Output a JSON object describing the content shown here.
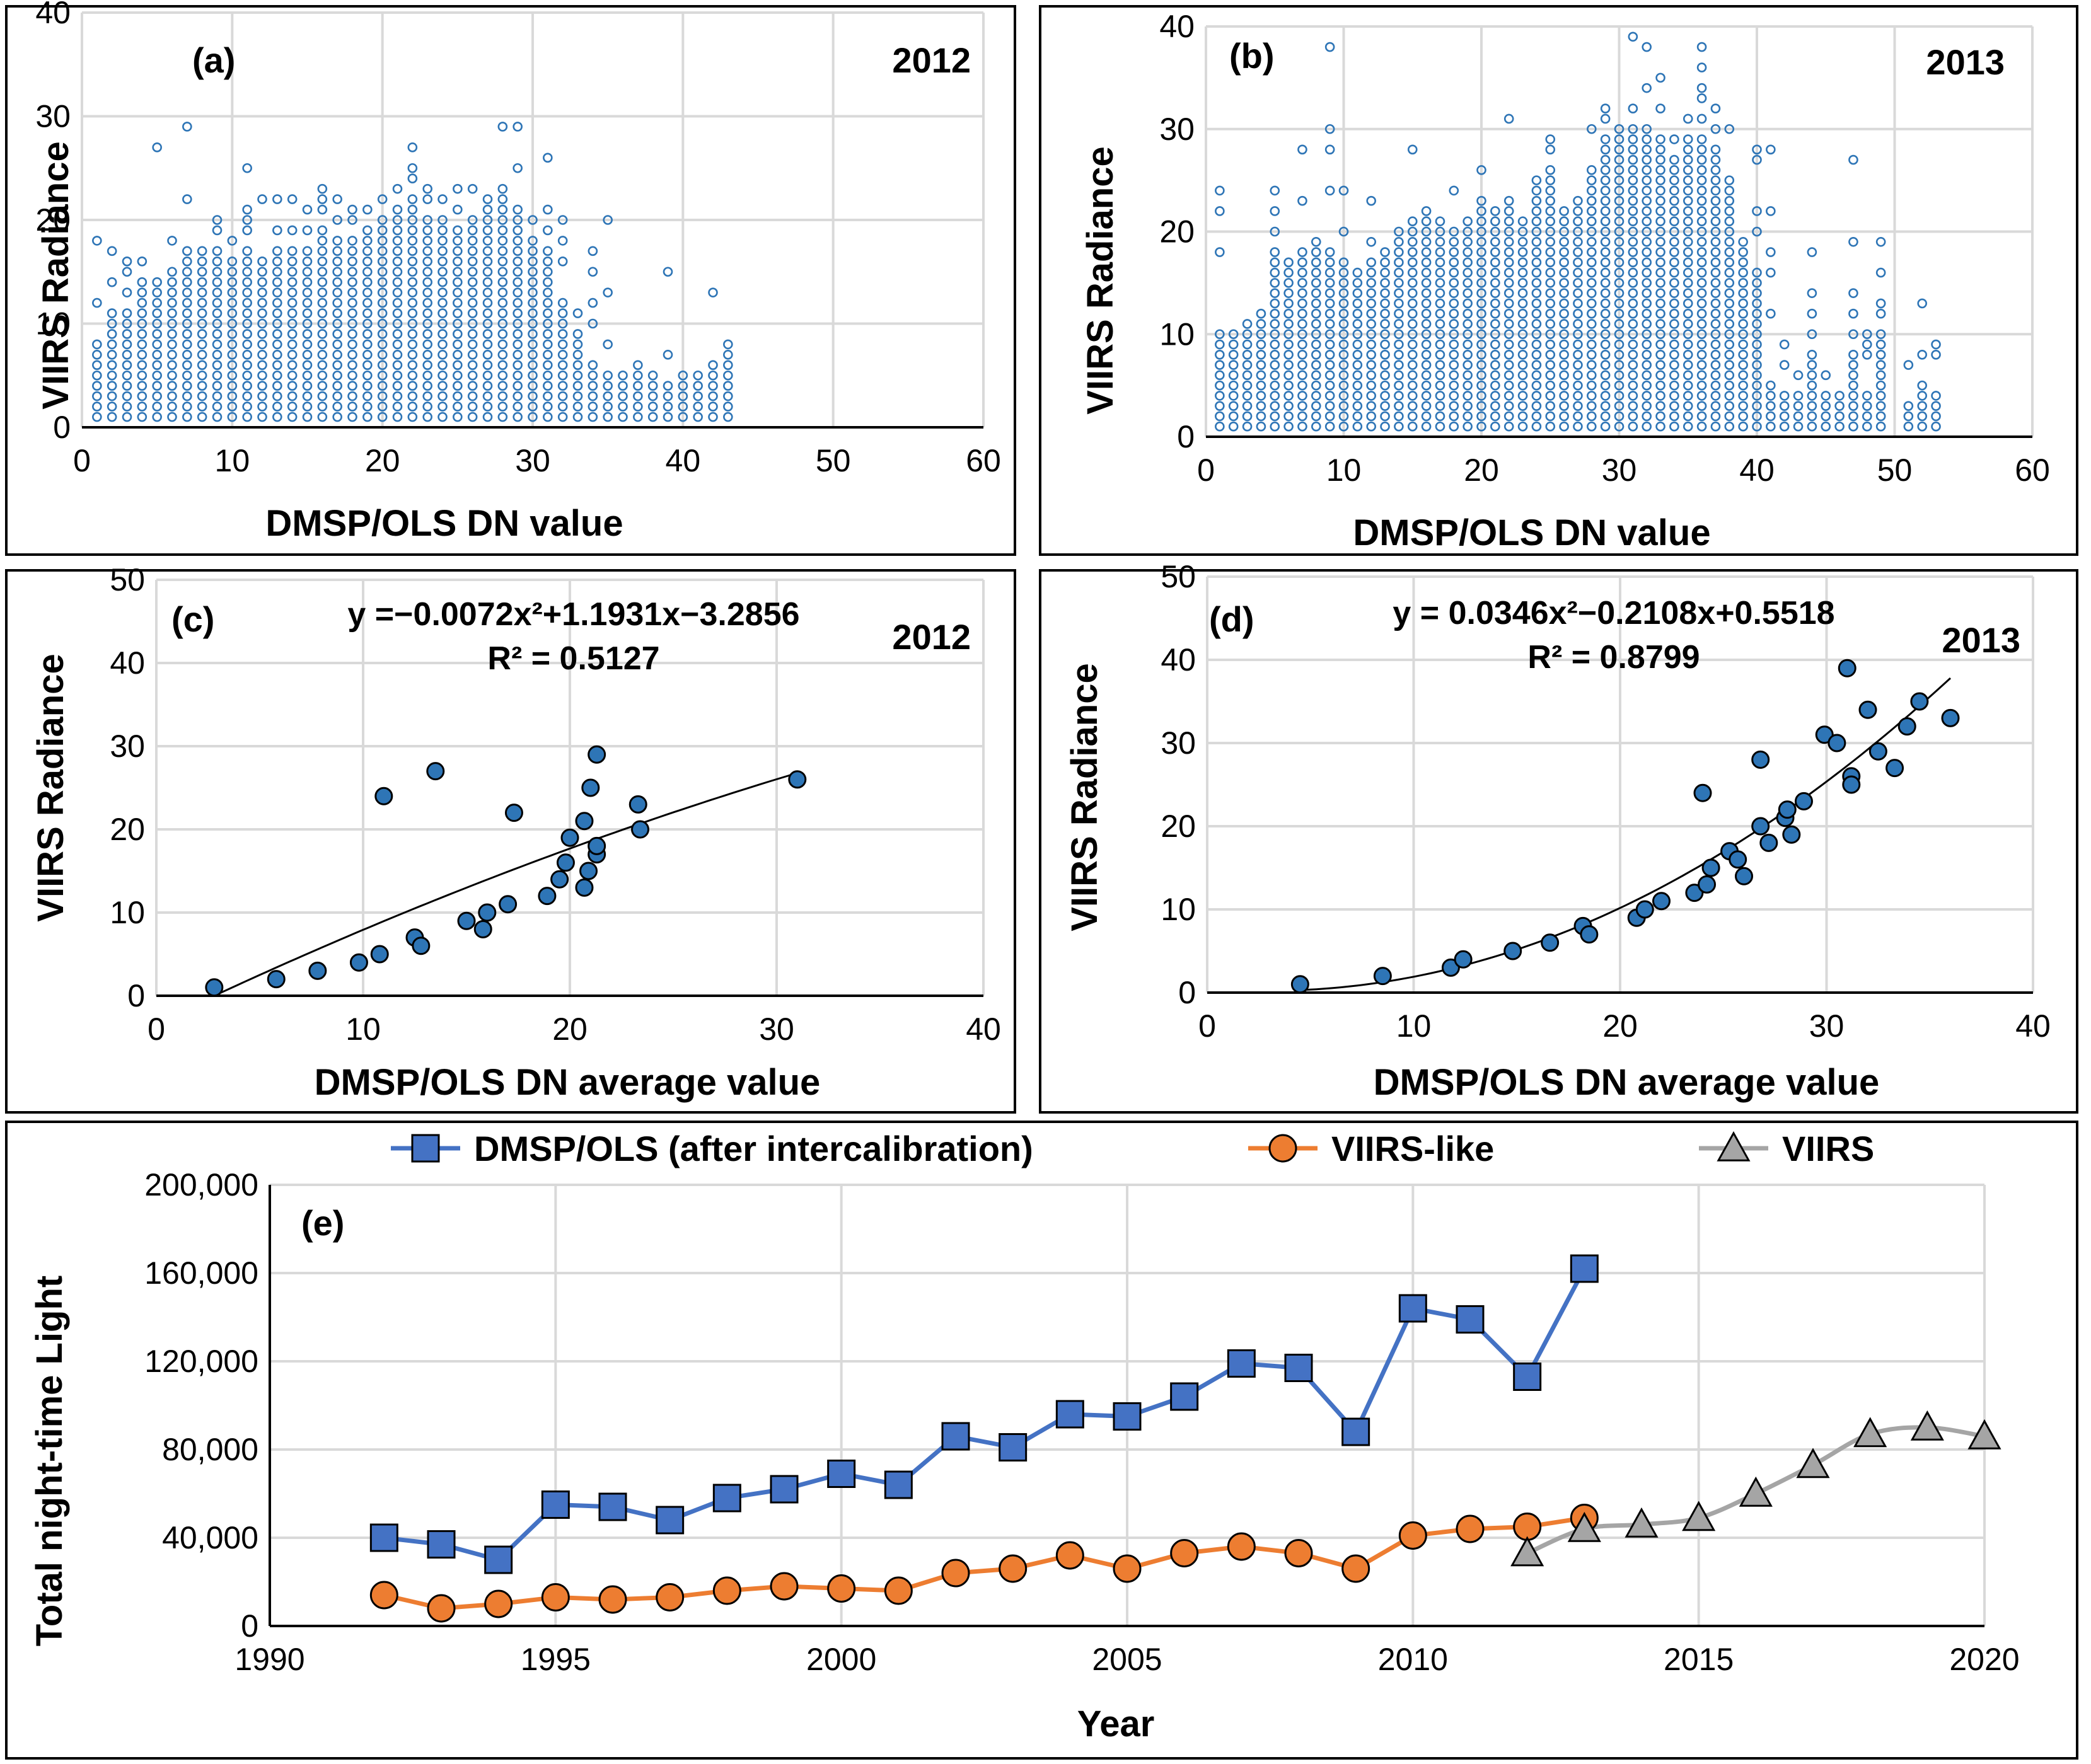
{
  "colors": {
    "scatter_open": "#2e75b6",
    "scatter_fill": "#2e75b6",
    "dmsp": "#4472c4",
    "viirs_like": "#ed7d31",
    "viirs": "#a5a5a5",
    "grid": "#d9d9d9"
  },
  "chart_data": [
    {
      "panel": "a",
      "type": "scatter",
      "tag": "(a)",
      "year_label": "2012",
      "xlabel": "DMSP/OLS DN value",
      "ylabel": "VIIRS Radiance",
      "xlim": [
        0,
        60
      ],
      "ylim": [
        0,
        40
      ],
      "xticks": [
        "0",
        "10",
        "20",
        "30",
        "40",
        "50",
        "60"
      ],
      "yticks": [
        "0",
        "10",
        "20",
        "30",
        "40"
      ],
      "columns": [
        {
          "x": 1,
          "ymax": 8,
          "extra": [
            12,
            18
          ]
        },
        {
          "x": 2,
          "ymax": 11,
          "extra": [
            14,
            17
          ]
        },
        {
          "x": 3,
          "ymax": 11,
          "extra": [
            13,
            15,
            16
          ]
        },
        {
          "x": 4,
          "ymax": 14,
          "extra": [
            16
          ]
        },
        {
          "x": 5,
          "ymax": 14,
          "extra": [
            27
          ]
        },
        {
          "x": 6,
          "ymax": 15,
          "extra": [
            18
          ]
        },
        {
          "x": 7,
          "ymax": 16,
          "extra": [
            17,
            22,
            29
          ]
        },
        {
          "x": 8,
          "ymax": 16,
          "extra": [
            17
          ]
        },
        {
          "x": 9,
          "ymax": 17,
          "extra": [
            19,
            20
          ]
        },
        {
          "x": 10,
          "ymax": 16,
          "extra": [
            18
          ]
        },
        {
          "x": 11,
          "ymax": 17,
          "extra": [
            19,
            20,
            21,
            25
          ]
        },
        {
          "x": 12,
          "ymax": 16,
          "extra": [
            22
          ]
        },
        {
          "x": 13,
          "ymax": 17,
          "extra": [
            19,
            22
          ]
        },
        {
          "x": 14,
          "ymax": 17,
          "extra": [
            19,
            22
          ]
        },
        {
          "x": 15,
          "ymax": 17,
          "extra": [
            19,
            21
          ]
        },
        {
          "x": 16,
          "ymax": 19,
          "extra": [
            21,
            22,
            23
          ]
        },
        {
          "x": 17,
          "ymax": 18,
          "extra": [
            20,
            22
          ]
        },
        {
          "x": 18,
          "ymax": 18,
          "extra": [
            20,
            21
          ]
        },
        {
          "x": 19,
          "ymax": 19,
          "extra": [
            21
          ]
        },
        {
          "x": 20,
          "ymax": 20,
          "extra": [
            22
          ]
        },
        {
          "x": 21,
          "ymax": 21,
          "extra": [
            23
          ]
        },
        {
          "x": 22,
          "ymax": 22,
          "extra": [
            24,
            25,
            27
          ]
        },
        {
          "x": 23,
          "ymax": 20,
          "extra": [
            22,
            23
          ]
        },
        {
          "x": 24,
          "ymax": 20,
          "extra": [
            22
          ]
        },
        {
          "x": 25,
          "ymax": 19,
          "extra": [
            21,
            23
          ]
        },
        {
          "x": 26,
          "ymax": 20,
          "extra": [
            23
          ]
        },
        {
          "x": 27,
          "ymax": 21,
          "extra": [
            22
          ]
        },
        {
          "x": 28,
          "ymax": 22,
          "extra": [
            23,
            29
          ]
        },
        {
          "x": 29,
          "ymax": 20,
          "extra": [
            21,
            25,
            29
          ]
        },
        {
          "x": 30,
          "ymax": 18,
          "extra": [
            20
          ]
        },
        {
          "x": 31,
          "ymax": 17,
          "extra": [
            19,
            21,
            26
          ]
        },
        {
          "x": 32,
          "ymax": 12,
          "extra": [
            16,
            18,
            20
          ]
        },
        {
          "x": 33,
          "ymax": 9,
          "extra": [
            11
          ]
        },
        {
          "x": 34,
          "ymax": 6,
          "extra": [
            10,
            12,
            15,
            17
          ]
        },
        {
          "x": 35,
          "ymax": 5,
          "extra": [
            8,
            13,
            20
          ]
        },
        {
          "x": 36,
          "ymax": 5,
          "extra": []
        },
        {
          "x": 37,
          "ymax": 6,
          "extra": []
        },
        {
          "x": 38,
          "ymax": 5,
          "extra": []
        },
        {
          "x": 39,
          "ymax": 4,
          "extra": [
            7,
            15
          ]
        },
        {
          "x": 40,
          "ymax": 4,
          "extra": [
            5
          ]
        },
        {
          "x": 41,
          "ymax": 5,
          "extra": []
        },
        {
          "x": 42,
          "ymax": 6,
          "extra": [
            13
          ]
        },
        {
          "x": 43,
          "ymax": 8,
          "extra": []
        }
      ]
    },
    {
      "panel": "b",
      "type": "scatter",
      "tag": "(b)",
      "year_label": "2013",
      "xlabel": "DMSP/OLS DN value",
      "ylabel": "VIIRS Radiance",
      "xlim": [
        0,
        60
      ],
      "ylim": [
        0,
        40
      ],
      "xticks": [
        "0",
        "10",
        "20",
        "30",
        "40",
        "50",
        "60"
      ],
      "yticks": [
        "0",
        "10",
        "20",
        "30",
        "40"
      ],
      "columns": [
        {
          "x": 1,
          "ymax": 10,
          "extra": [
            18,
            22,
            24
          ]
        },
        {
          "x": 2,
          "ymax": 10,
          "extra": []
        },
        {
          "x": 3,
          "ymax": 11,
          "extra": []
        },
        {
          "x": 4,
          "ymax": 12,
          "extra": []
        },
        {
          "x": 5,
          "ymax": 18,
          "extra": [
            20,
            22,
            24
          ]
        },
        {
          "x": 6,
          "ymax": 17,
          "extra": []
        },
        {
          "x": 7,
          "ymax": 18,
          "extra": [
            23,
            28
          ]
        },
        {
          "x": 8,
          "ymax": 19,
          "extra": []
        },
        {
          "x": 9,
          "ymax": 18,
          "extra": [
            24,
            28,
            30,
            38
          ]
        },
        {
          "x": 10,
          "ymax": 17,
          "extra": [
            20,
            24
          ]
        },
        {
          "x": 11,
          "ymax": 16,
          "extra": []
        },
        {
          "x": 12,
          "ymax": 17,
          "extra": [
            19,
            23
          ]
        },
        {
          "x": 13,
          "ymax": 18,
          "extra": []
        },
        {
          "x": 14,
          "ymax": 20,
          "extra": []
        },
        {
          "x": 15,
          "ymax": 21,
          "extra": [
            28
          ]
        },
        {
          "x": 16,
          "ymax": 22,
          "extra": []
        },
        {
          "x": 17,
          "ymax": 21,
          "extra": []
        },
        {
          "x": 18,
          "ymax": 20,
          "extra": [
            24
          ]
        },
        {
          "x": 19,
          "ymax": 21,
          "extra": []
        },
        {
          "x": 20,
          "ymax": 23,
          "extra": [
            26
          ]
        },
        {
          "x": 21,
          "ymax": 22,
          "extra": []
        },
        {
          "x": 22,
          "ymax": 23,
          "extra": [
            31
          ]
        },
        {
          "x": 23,
          "ymax": 21,
          "extra": []
        },
        {
          "x": 24,
          "ymax": 25,
          "extra": []
        },
        {
          "x": 25,
          "ymax": 26,
          "extra": [
            28,
            29
          ]
        },
        {
          "x": 26,
          "ymax": 22,
          "extra": []
        },
        {
          "x": 27,
          "ymax": 23,
          "extra": []
        },
        {
          "x": 28,
          "ymax": 26,
          "extra": [
            30
          ]
        },
        {
          "x": 29,
          "ymax": 29,
          "extra": [
            31,
            32
          ]
        },
        {
          "x": 30,
          "ymax": 30,
          "extra": []
        },
        {
          "x": 31,
          "ymax": 30,
          "extra": [
            32,
            39
          ]
        },
        {
          "x": 32,
          "ymax": 30,
          "extra": [
            34,
            38
          ]
        },
        {
          "x": 33,
          "ymax": 29,
          "extra": [
            32,
            35
          ]
        },
        {
          "x": 34,
          "ymax": 27,
          "extra": [
            29
          ]
        },
        {
          "x": 35,
          "ymax": 29,
          "extra": [
            31
          ]
        },
        {
          "x": 36,
          "ymax": 29,
          "extra": [
            31,
            33,
            34,
            36,
            38
          ]
        },
        {
          "x": 37,
          "ymax": 28,
          "extra": [
            30,
            32
          ]
        },
        {
          "x": 38,
          "ymax": 25,
          "extra": [
            30
          ]
        },
        {
          "x": 39,
          "ymax": 18,
          "extra": [
            19
          ]
        },
        {
          "x": 40,
          "ymax": 16,
          "extra": [
            20,
            22,
            27,
            28
          ]
        },
        {
          "x": 41,
          "ymax": 5,
          "extra": [
            12,
            16,
            18,
            22,
            28
          ]
        },
        {
          "x": 42,
          "ymax": 4,
          "extra": [
            7,
            9
          ]
        },
        {
          "x": 43,
          "ymax": 4,
          "extra": [
            6
          ]
        },
        {
          "x": 44,
          "ymax": 8,
          "extra": [
            10,
            12,
            14,
            18
          ]
        },
        {
          "x": 45,
          "ymax": 3,
          "extra": [
            4,
            6
          ]
        },
        {
          "x": 46,
          "ymax": 3,
          "extra": [
            4
          ]
        },
        {
          "x": 47,
          "ymax": 8,
          "extra": [
            10,
            12,
            14,
            19,
            27
          ]
        },
        {
          "x": 48,
          "ymax": 3,
          "extra": [
            4,
            8,
            9,
            10
          ]
        },
        {
          "x": 49,
          "ymax": 10,
          "extra": [
            12,
            13,
            16,
            19
          ]
        },
        {
          "x": 51,
          "ymax": 3,
          "extra": [
            7
          ]
        },
        {
          "x": 52,
          "ymax": 5,
          "extra": [
            8,
            13
          ]
        },
        {
          "x": 53,
          "ymax": 4,
          "extra": [
            8,
            9
          ]
        }
      ]
    },
    {
      "panel": "c",
      "type": "scatter",
      "tag": "(c)",
      "year_label": "2012",
      "equation": "y =−0.0072x²+1.1931x−3.2856",
      "r2": "R² = 0.5127",
      "xlabel": "DMSP/OLS DN average value",
      "ylabel": "VIIRS Radiance",
      "xlim": [
        0,
        40
      ],
      "ylim": [
        0,
        50
      ],
      "xticks": [
        "0",
        "10",
        "20",
        "30",
        "40"
      ],
      "yticks": [
        "0",
        "10",
        "20",
        "30",
        "40",
        "50"
      ],
      "fit": {
        "a": -0.0072,
        "b": 1.1931,
        "c": -3.2856,
        "xrange": [
          2.9,
          31
        ]
      },
      "points": [
        [
          2.8,
          1
        ],
        [
          5.8,
          2
        ],
        [
          7.8,
          3
        ],
        [
          9.8,
          4
        ],
        [
          10.8,
          5
        ],
        [
          11,
          24
        ],
        [
          12.5,
          7
        ],
        [
          12.8,
          6
        ],
        [
          13.5,
          27
        ],
        [
          15,
          9
        ],
        [
          15.8,
          8
        ],
        [
          16,
          10
        ],
        [
          17,
          11
        ],
        [
          17.3,
          22
        ],
        [
          18.9,
          12
        ],
        [
          19.5,
          14
        ],
        [
          19.8,
          16
        ],
        [
          20,
          19
        ],
        [
          20.7,
          13
        ],
        [
          20.7,
          21
        ],
        [
          20.9,
          15
        ],
        [
          21,
          25
        ],
        [
          21.3,
          17
        ],
        [
          21.3,
          18
        ],
        [
          21.3,
          29
        ],
        [
          23.3,
          23
        ],
        [
          23.4,
          20
        ],
        [
          31,
          26
        ]
      ]
    },
    {
      "panel": "d",
      "type": "scatter",
      "tag": "(d)",
      "year_label": "2013",
      "equation": "y = 0.0346x²−0.2108x+0.5518",
      "r2": "R² = 0.8799",
      "xlabel": "DMSP/OLS DN average value",
      "ylabel": "VIIRS Radiance",
      "xlim": [
        0,
        40
      ],
      "ylim": [
        0,
        50
      ],
      "xticks": [
        "0",
        "10",
        "20",
        "30",
        "40"
      ],
      "yticks": [
        "0",
        "10",
        "20",
        "30",
        "40",
        "50"
      ],
      "fit": {
        "a": 0.0346,
        "b": -0.2108,
        "c": 0.5518,
        "xrange": [
          4.5,
          36
        ]
      },
      "points": [
        [
          4.5,
          1
        ],
        [
          8.5,
          2
        ],
        [
          11.8,
          3
        ],
        [
          12.4,
          4
        ],
        [
          14.8,
          5
        ],
        [
          16.6,
          6
        ],
        [
          18.2,
          8
        ],
        [
          18.5,
          7
        ],
        [
          20.8,
          9
        ],
        [
          21.2,
          10
        ],
        [
          22,
          11
        ],
        [
          23.6,
          12
        ],
        [
          24,
          24
        ],
        [
          24.2,
          13
        ],
        [
          24.4,
          15
        ],
        [
          25.3,
          17
        ],
        [
          25.7,
          16
        ],
        [
          26,
          14
        ],
        [
          26.8,
          28
        ],
        [
          26.8,
          20
        ],
        [
          27.2,
          18
        ],
        [
          28,
          21
        ],
        [
          28.1,
          22
        ],
        [
          28.3,
          19
        ],
        [
          28.9,
          23
        ],
        [
          29.9,
          31
        ],
        [
          30.5,
          30
        ],
        [
          31,
          39
        ],
        [
          31.2,
          26
        ],
        [
          31.2,
          25
        ],
        [
          32,
          34
        ],
        [
          32.5,
          29
        ],
        [
          33.3,
          27
        ],
        [
          33.9,
          32
        ],
        [
          34.5,
          35
        ],
        [
          36,
          33
        ]
      ]
    },
    {
      "panel": "e",
      "type": "line",
      "tag": "(e)",
      "xlabel": "Year",
      "ylabel": "Total night-time Light",
      "xlim": [
        1990,
        2020
      ],
      "ylim": [
        0,
        200000
      ],
      "xticks": [
        "1990",
        "1995",
        "2000",
        "2005",
        "2010",
        "2015",
        "2020"
      ],
      "yticks": [
        "0",
        "40,000",
        "80,000",
        "120,000",
        "160,000",
        "200,000"
      ],
      "series": [
        {
          "name": "DMSP/OLS (after intercalibration)",
          "marker": "square",
          "x": [
            1992,
            1993,
            1994,
            1995,
            1996,
            1997,
            1998,
            1999,
            2000,
            2001,
            2002,
            2003,
            2004,
            2005,
            2006,
            2007,
            2008,
            2009,
            2010,
            2011,
            2012,
            2013
          ],
          "values": [
            40000,
            37000,
            30000,
            55000,
            54000,
            48000,
            58000,
            62000,
            69000,
            64000,
            86000,
            81000,
            96000,
            95000,
            104000,
            119000,
            117000,
            88000,
            144000,
            139000,
            113000,
            162000
          ]
        },
        {
          "name": "VIIRS-like",
          "marker": "circle",
          "x": [
            1992,
            1993,
            1994,
            1995,
            1996,
            1997,
            1998,
            1999,
            2000,
            2001,
            2002,
            2003,
            2004,
            2005,
            2006,
            2007,
            2008,
            2009,
            2010,
            2011,
            2012,
            2013
          ],
          "values": [
            14000,
            8000,
            10000,
            13000,
            12000,
            13000,
            16000,
            18000,
            17000,
            16000,
            24000,
            26000,
            32000,
            26000,
            33000,
            36000,
            33000,
            26000,
            41000,
            44000,
            45000,
            49000
          ]
        },
        {
          "name": "VIIRS",
          "marker": "triangle",
          "x": [
            2012,
            2013,
            2014,
            2015,
            2016,
            2017,
            2018,
            2019,
            2020
          ],
          "values": [
            33000,
            44000,
            46000,
            49000,
            60000,
            73000,
            87000,
            90000,
            86000
          ]
        }
      ]
    }
  ]
}
